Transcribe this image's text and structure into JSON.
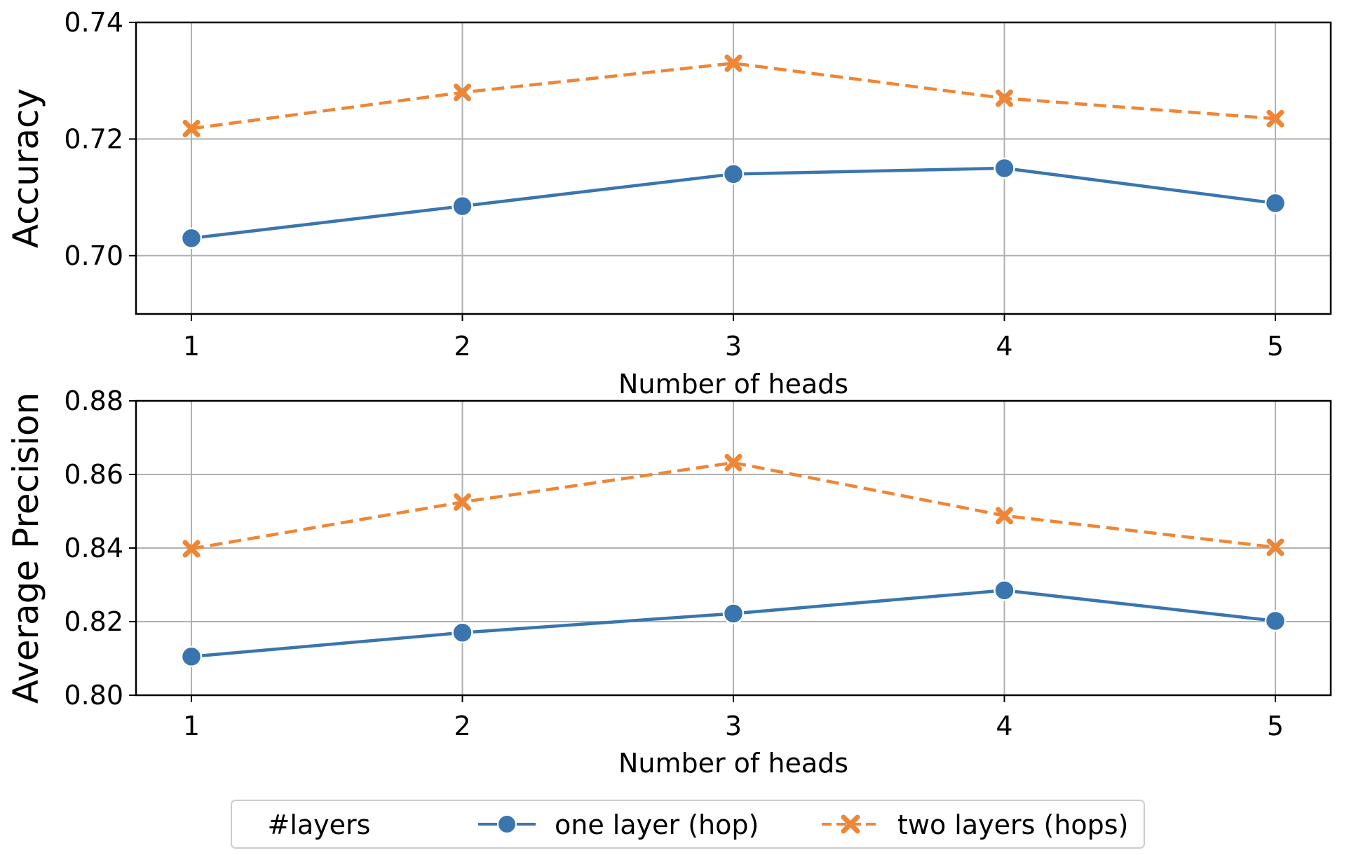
{
  "chart_data": [
    {
      "type": "line",
      "ylabel": "Accuracy",
      "xlabel": "Number of heads",
      "x": [
        1,
        2,
        3,
        4,
        5
      ],
      "xticks": [
        "1",
        "2",
        "3",
        "4",
        "5"
      ],
      "ylim": [
        0.69,
        0.74
      ],
      "yticks": [
        "0.70",
        "0.72",
        "0.74"
      ],
      "grid": true,
      "series": [
        {
          "name": "one layer (hop)",
          "values": [
            0.703,
            0.7085,
            0.714,
            0.715,
            0.709
          ],
          "color": "#3a75af",
          "style": "solid",
          "marker": "circle"
        },
        {
          "name": "two layers (hops)",
          "values": [
            0.7218,
            0.728,
            0.733,
            0.727,
            0.7235
          ],
          "color": "#ef8636",
          "style": "dashed",
          "marker": "x"
        }
      ]
    },
    {
      "type": "line",
      "ylabel": "Average Precision",
      "xlabel": "Number of heads",
      "x": [
        1,
        2,
        3,
        4,
        5
      ],
      "xticks": [
        "1",
        "2",
        "3",
        "4",
        "5"
      ],
      "ylim": [
        0.8,
        0.88
      ],
      "yticks": [
        "0.80",
        "0.82",
        "0.84",
        "0.86",
        "0.88"
      ],
      "grid": true,
      "series": [
        {
          "name": "one layer (hop)",
          "values": [
            0.8105,
            0.817,
            0.8222,
            0.8285,
            0.8202
          ],
          "color": "#3a75af",
          "style": "solid",
          "marker": "circle"
        },
        {
          "name": "two layers (hops)",
          "values": [
            0.8398,
            0.8525,
            0.8632,
            0.8488,
            0.8402
          ],
          "color": "#ef8636",
          "style": "dashed",
          "marker": "x"
        }
      ]
    }
  ],
  "legend": {
    "title": "#layers",
    "placement": "bottom-center",
    "items": [
      "one layer (hop)",
      "two layers (hops)"
    ]
  }
}
